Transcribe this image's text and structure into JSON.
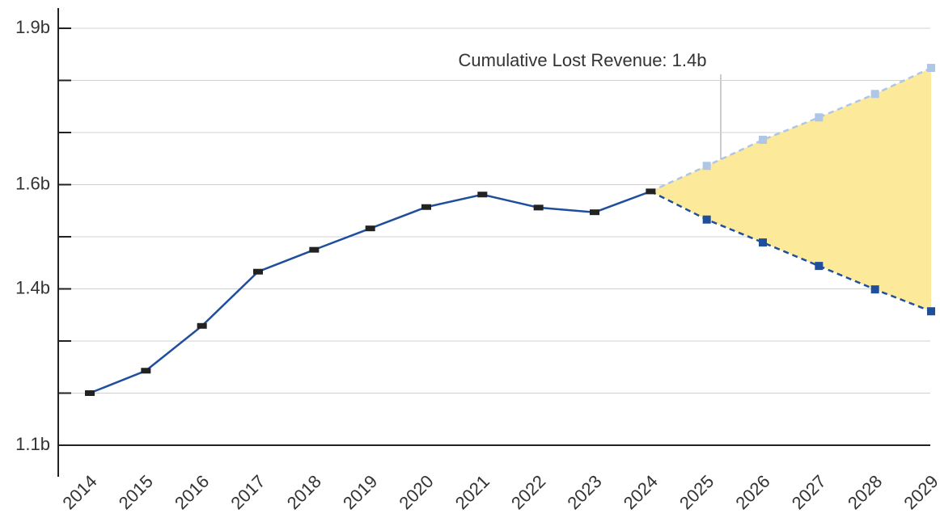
{
  "chart_data": {
    "type": "line",
    "annotation": "Cumulative Lost Revenue: 1.4b",
    "categories": [
      "2014",
      "2015",
      "2016",
      "2017",
      "2018",
      "2019",
      "2020",
      "2021",
      "2022",
      "2023",
      "2024",
      "2025",
      "2026",
      "2027",
      "2028",
      "2029"
    ],
    "series": [
      {
        "color": "#1f4e9c",
        "marker_color": "#222222",
        "dashed": false,
        "values": [
          1.2,
          1.243,
          1.329,
          1.433,
          1.475,
          1.516,
          1.557,
          1.581,
          1.556,
          1.547,
          1.587,
          null,
          null,
          null,
          null,
          null
        ]
      },
      {
        "color": "#aec6e8",
        "marker_color": "#aec6e8",
        "dashed": true,
        "values": [
          null,
          null,
          null,
          null,
          null,
          null,
          null,
          null,
          null,
          null,
          1.587,
          1.636,
          1.686,
          1.729,
          1.774,
          1.824
        ]
      },
      {
        "color": "#1f4e9c",
        "marker_color": "#1f4e9c",
        "dashed": true,
        "values": [
          null,
          null,
          null,
          null,
          null,
          null,
          null,
          null,
          null,
          null,
          1.587,
          1.533,
          1.489,
          1.444,
          1.399,
          1.357
        ]
      }
    ],
    "fill_between": [
      1,
      2
    ],
    "fill_color": "#fce999",
    "ylim": [
      1.1,
      1.9
    ],
    "yticks": [
      {
        "value": 1.1,
        "label": "1.1b"
      },
      {
        "value": 1.4,
        "label": "1.4b"
      },
      {
        "value": 1.6,
        "label": "1.6b"
      },
      {
        "value": 1.9,
        "label": "1.9b"
      }
    ],
    "minor_yticks": [
      1.2,
      1.3,
      1.5,
      1.7,
      1.8
    ],
    "grid": true
  }
}
